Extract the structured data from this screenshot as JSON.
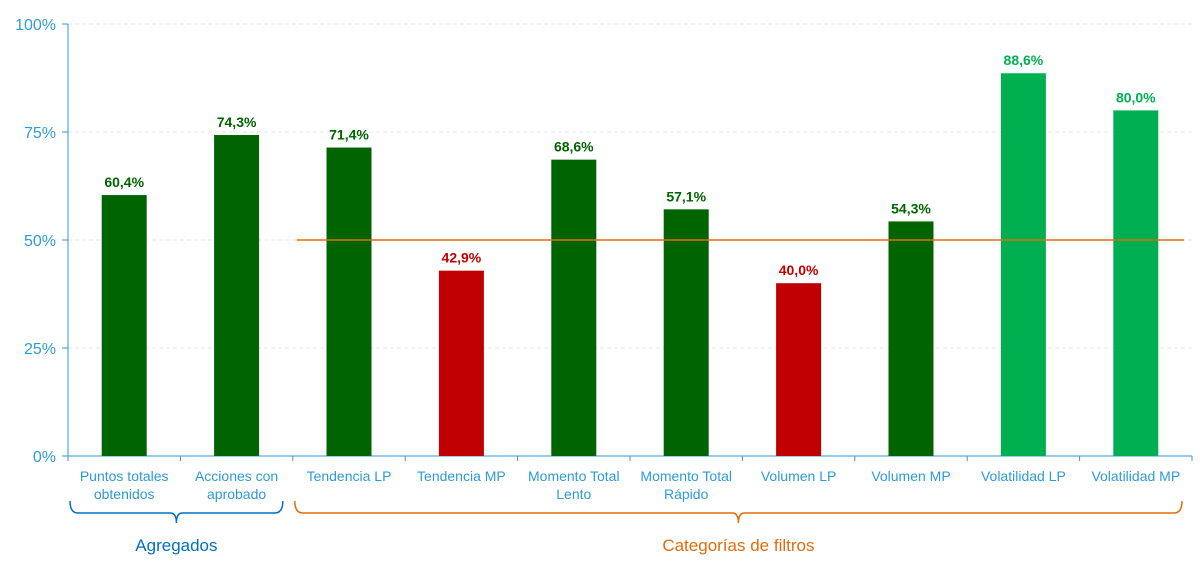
{
  "chart_data": {
    "type": "bar",
    "categories": [
      [
        "Puntos totales",
        "obtenidos"
      ],
      [
        "Acciones con",
        "aprobado"
      ],
      [
        "Tendencia LP"
      ],
      [
        "Tendencia MP"
      ],
      [
        "Momento Total",
        "Lento"
      ],
      [
        "Momento Total",
        "Rápido"
      ],
      [
        "Volumen LP"
      ],
      [
        "Volumen MP"
      ],
      [
        "Volatilidad LP"
      ],
      [
        "Volatilidad MP"
      ]
    ],
    "values": [
      60.4,
      74.3,
      71.4,
      42.9,
      68.6,
      57.1,
      40.0,
      54.3,
      88.6,
      80.0
    ],
    "data_labels": [
      "60,4%",
      "74,3%",
      "71,4%",
      "42,9%",
      "68,6%",
      "57,1%",
      "40,0%",
      "54,3%",
      "88,6%",
      "80,0%"
    ],
    "bar_colors": [
      "#006400",
      "#006400",
      "#006400",
      "#c00000",
      "#006400",
      "#006400",
      "#c00000",
      "#006400",
      "#00b050",
      "#00b050"
    ],
    "label_colors": [
      "#006400",
      "#006400",
      "#006400",
      "#c00000",
      "#006400",
      "#006400",
      "#c00000",
      "#006400",
      "#00b050",
      "#00b050"
    ],
    "ylim": [
      0,
      100
    ],
    "yticks": [
      0,
      25,
      50,
      75,
      100
    ],
    "ytick_labels": [
      "0%",
      "25%",
      "50%",
      "75%",
      "100%"
    ],
    "grid": true,
    "reference_line": {
      "value": 50,
      "from_category": 2,
      "color": "#e36c0a"
    },
    "groups": [
      {
        "label": "Agregados",
        "from": 0,
        "to": 1,
        "color": "#0070c0"
      },
      {
        "label": "Categorías de filtros",
        "from": 2,
        "to": 9,
        "color": "#e36c0a"
      }
    ],
    "axis_color": "#2e9bd6"
  }
}
